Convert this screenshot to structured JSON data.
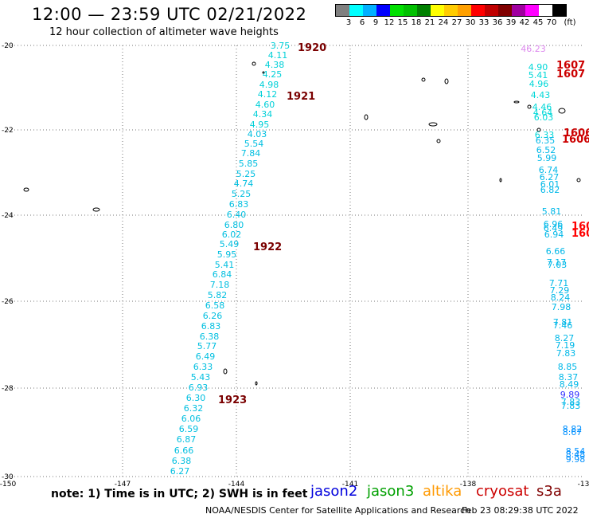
{
  "header": {
    "title": "12:00 — 23:59 UTC 02/21/2022",
    "subtitle": "12 hour collection of altimeter wave heights"
  },
  "legend": {
    "colors": [
      "#808080",
      "#00ffff",
      "#00b0ff",
      "#0000ff",
      "#00e000",
      "#00c000",
      "#008000",
      "#ffff00",
      "#ffcc00",
      "#ffa000",
      "#ff0000",
      "#c00000",
      "#800000",
      "#a000a0",
      "#ff00ff",
      "#ffffff",
      "#000000"
    ],
    "labels": [
      "3",
      "6",
      "9",
      "12",
      "15",
      "18",
      "21",
      "24",
      "27",
      "30",
      "33",
      "36",
      "39",
      "42",
      "45",
      "70"
    ],
    "unit": "(ft)"
  },
  "axes": {
    "lat_labels": [
      "-20",
      "-22",
      "-24",
      "-26",
      "-28",
      "-30"
    ],
    "lon_labels": [
      "-150",
      "-147",
      "-144",
      "-141",
      "-138",
      "-13"
    ]
  },
  "tracks": {
    "main": {
      "values": [
        "3.75",
        "4.11",
        "4.38",
        "4.25",
        "4.98",
        "4.12",
        "4.60",
        "4.34",
        "4.95",
        "4.03",
        "5.54",
        "7.84",
        "5.85",
        "5.25",
        "4.74",
        "5.25",
        "6.83",
        "6.40",
        "6.80",
        "6.02",
        "5.49",
        "5.95",
        "5.41",
        "6.84",
        "7.18",
        "5.82",
        "6.58",
        "6.26",
        "6.83",
        "6.38",
        "5.77",
        "6.49",
        "6.33",
        "5.43",
        "6.93",
        "6.30",
        "6.32",
        "6.06",
        "6.59",
        "6.87",
        "6.66",
        "6.38",
        "6.27"
      ],
      "times": [
        "1920",
        "1921",
        "1922",
        "1923"
      ]
    },
    "east": {
      "values": [
        "46.23",
        "4.90",
        "5.41",
        "4.96",
        "4.43",
        "4.46",
        "4.64",
        "6.03",
        "6.33",
        "6.35",
        "6.52",
        "5.99",
        "6.74",
        "6.27",
        "6.01",
        "6.82",
        "5.81",
        "6.96",
        "6.49",
        "6.94",
        "6.66",
        "7.17",
        "7.03",
        "7.71",
        "7.29",
        "8.24",
        "7.98",
        "7.81",
        "7.46",
        "8.27",
        "7.19",
        "7.83",
        "8.85",
        "8.37",
        "8.49",
        "9.89",
        "7.83",
        "7.83",
        "8.82",
        "8.67",
        "8.54",
        "8.48",
        "9.98"
      ],
      "times": [
        "1607",
        "1607",
        "1606",
        "1606",
        "160",
        "160"
      ]
    }
  },
  "footer": {
    "note": "note:  1) Time is in UTC;  2) SWH is in feet",
    "satellites": [
      {
        "name": "jason2",
        "color": "#0000dd"
      },
      {
        "name": "jason3",
        "color": "#00a000"
      },
      {
        "name": "altika",
        "color": "#ff9900"
      },
      {
        "name": "cryosat",
        "color": "#cc0000"
      },
      {
        "name": "s3a",
        "color": "#800000"
      }
    ],
    "credit": "NOAA/NESDIS Center for Satellite Applications and Research",
    "timestamp": "Feb 23 08:29:38 UTC 2022"
  }
}
